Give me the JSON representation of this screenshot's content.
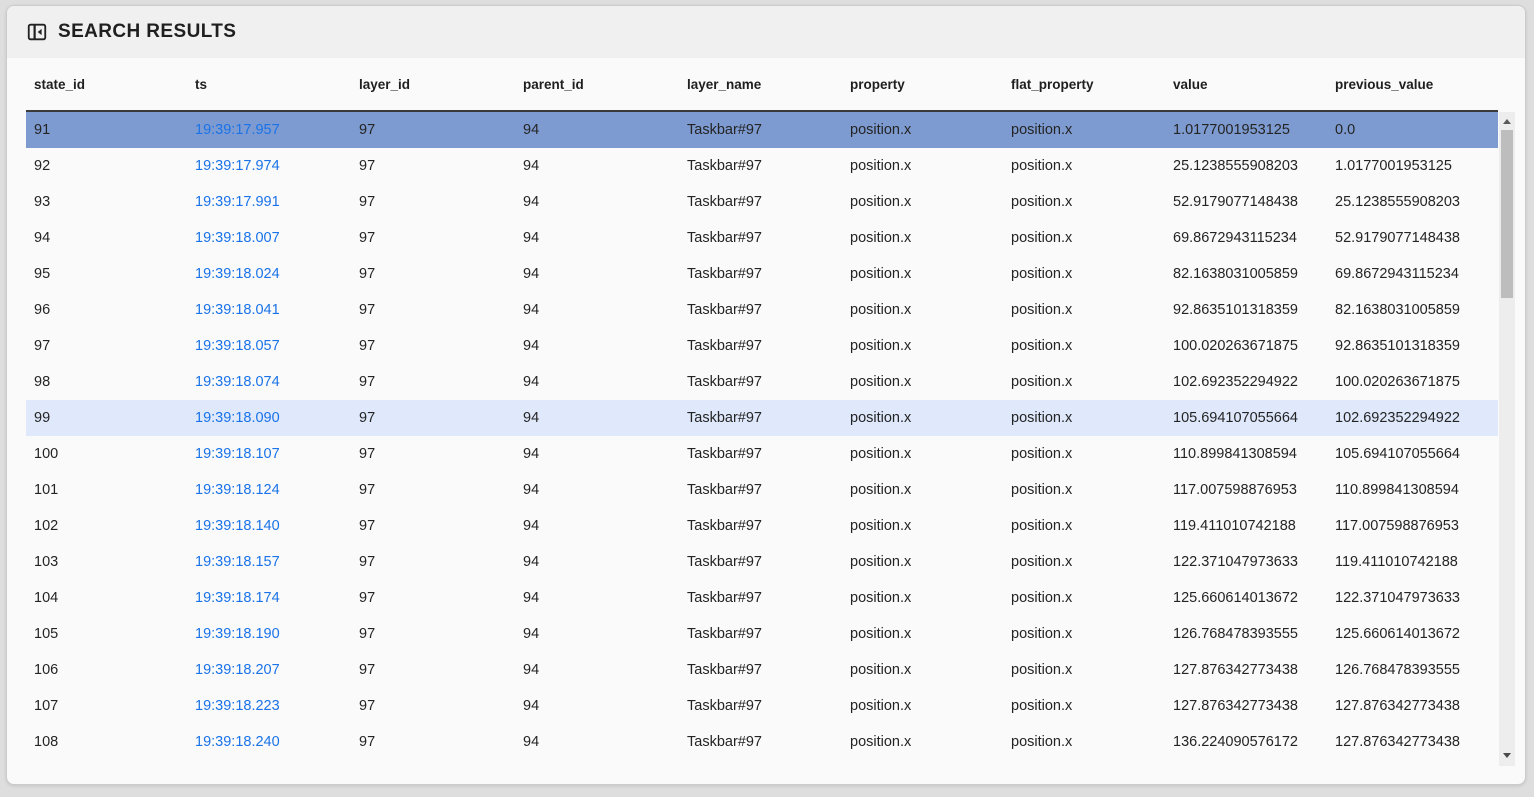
{
  "panel": {
    "title": "SEARCH RESULTS",
    "icon": "dock-panel-icon"
  },
  "colors": {
    "selected_row": "#7d9bd0",
    "highlighted_row": "#dfe9fb",
    "link": "#1a73e8",
    "header_strip": "#f0f0f0",
    "card_bg": "#fafafa",
    "page_bg": "#dedede"
  },
  "scrollbar": {
    "up_icon": "scroll-up-arrow-icon",
    "down_icon": "scroll-down-arrow-icon"
  },
  "table": {
    "columns": [
      {
        "key": "state_id",
        "label": "state_id"
      },
      {
        "key": "ts",
        "label": "ts"
      },
      {
        "key": "layer_id",
        "label": "layer_id"
      },
      {
        "key": "parent_id",
        "label": "parent_id"
      },
      {
        "key": "layer_name",
        "label": "layer_name"
      },
      {
        "key": "property",
        "label": "property"
      },
      {
        "key": "flat_property",
        "label": "flat_property"
      },
      {
        "key": "value",
        "label": "value"
      },
      {
        "key": "previous_value",
        "label": "previous_value"
      }
    ],
    "rows": [
      {
        "state": "selected",
        "state_id": "91",
        "ts": "19:39:17.957",
        "layer_id": "97",
        "parent_id": "94",
        "layer_name": "Taskbar#97",
        "property": "position.x",
        "flat_property": "position.x",
        "value": "1.0177001953125",
        "previous_value": "0.0"
      },
      {
        "state": "",
        "state_id": "92",
        "ts": "19:39:17.974",
        "layer_id": "97",
        "parent_id": "94",
        "layer_name": "Taskbar#97",
        "property": "position.x",
        "flat_property": "position.x",
        "value": "25.1238555908203",
        "previous_value": "1.0177001953125"
      },
      {
        "state": "",
        "state_id": "93",
        "ts": "19:39:17.991",
        "layer_id": "97",
        "parent_id": "94",
        "layer_name": "Taskbar#97",
        "property": "position.x",
        "flat_property": "position.x",
        "value": "52.9179077148438",
        "previous_value": "25.1238555908203"
      },
      {
        "state": "",
        "state_id": "94",
        "ts": "19:39:18.007",
        "layer_id": "97",
        "parent_id": "94",
        "layer_name": "Taskbar#97",
        "property": "position.x",
        "flat_property": "position.x",
        "value": "69.8672943115234",
        "previous_value": "52.9179077148438"
      },
      {
        "state": "",
        "state_id": "95",
        "ts": "19:39:18.024",
        "layer_id": "97",
        "parent_id": "94",
        "layer_name": "Taskbar#97",
        "property": "position.x",
        "flat_property": "position.x",
        "value": "82.1638031005859",
        "previous_value": "69.8672943115234"
      },
      {
        "state": "",
        "state_id": "96",
        "ts": "19:39:18.041",
        "layer_id": "97",
        "parent_id": "94",
        "layer_name": "Taskbar#97",
        "property": "position.x",
        "flat_property": "position.x",
        "value": "92.8635101318359",
        "previous_value": "82.1638031005859"
      },
      {
        "state": "",
        "state_id": "97",
        "ts": "19:39:18.057",
        "layer_id": "97",
        "parent_id": "94",
        "layer_name": "Taskbar#97",
        "property": "position.x",
        "flat_property": "position.x",
        "value": "100.020263671875",
        "previous_value": "92.8635101318359"
      },
      {
        "state": "",
        "state_id": "98",
        "ts": "19:39:18.074",
        "layer_id": "97",
        "parent_id": "94",
        "layer_name": "Taskbar#97",
        "property": "position.x",
        "flat_property": "position.x",
        "value": "102.692352294922",
        "previous_value": "100.020263671875"
      },
      {
        "state": "highlighted",
        "state_id": "99",
        "ts": "19:39:18.090",
        "layer_id": "97",
        "parent_id": "94",
        "layer_name": "Taskbar#97",
        "property": "position.x",
        "flat_property": "position.x",
        "value": "105.694107055664",
        "previous_value": "102.692352294922"
      },
      {
        "state": "",
        "state_id": "100",
        "ts": "19:39:18.107",
        "layer_id": "97",
        "parent_id": "94",
        "layer_name": "Taskbar#97",
        "property": "position.x",
        "flat_property": "position.x",
        "value": "110.899841308594",
        "previous_value": "105.694107055664"
      },
      {
        "state": "",
        "state_id": "101",
        "ts": "19:39:18.124",
        "layer_id": "97",
        "parent_id": "94",
        "layer_name": "Taskbar#97",
        "property": "position.x",
        "flat_property": "position.x",
        "value": "117.007598876953",
        "previous_value": "110.899841308594"
      },
      {
        "state": "",
        "state_id": "102",
        "ts": "19:39:18.140",
        "layer_id": "97",
        "parent_id": "94",
        "layer_name": "Taskbar#97",
        "property": "position.x",
        "flat_property": "position.x",
        "value": "119.411010742188",
        "previous_value": "117.007598876953"
      },
      {
        "state": "",
        "state_id": "103",
        "ts": "19:39:18.157",
        "layer_id": "97",
        "parent_id": "94",
        "layer_name": "Taskbar#97",
        "property": "position.x",
        "flat_property": "position.x",
        "value": "122.371047973633",
        "previous_value": "119.411010742188"
      },
      {
        "state": "",
        "state_id": "104",
        "ts": "19:39:18.174",
        "layer_id": "97",
        "parent_id": "94",
        "layer_name": "Taskbar#97",
        "property": "position.x",
        "flat_property": "position.x",
        "value": "125.660614013672",
        "previous_value": "122.371047973633"
      },
      {
        "state": "",
        "state_id": "105",
        "ts": "19:39:18.190",
        "layer_id": "97",
        "parent_id": "94",
        "layer_name": "Taskbar#97",
        "property": "position.x",
        "flat_property": "position.x",
        "value": "126.768478393555",
        "previous_value": "125.660614013672"
      },
      {
        "state": "",
        "state_id": "106",
        "ts": "19:39:18.207",
        "layer_id": "97",
        "parent_id": "94",
        "layer_name": "Taskbar#97",
        "property": "position.x",
        "flat_property": "position.x",
        "value": "127.876342773438",
        "previous_value": "126.768478393555"
      },
      {
        "state": "",
        "state_id": "107",
        "ts": "19:39:18.223",
        "layer_id": "97",
        "parent_id": "94",
        "layer_name": "Taskbar#97",
        "property": "position.x",
        "flat_property": "position.x",
        "value": "127.876342773438",
        "previous_value": "127.876342773438"
      },
      {
        "state": "",
        "state_id": "108",
        "ts": "19:39:18.240",
        "layer_id": "97",
        "parent_id": "94",
        "layer_name": "Taskbar#97",
        "property": "position.x",
        "flat_property": "position.x",
        "value": "136.224090576172",
        "previous_value": "127.876342773438"
      }
    ]
  }
}
